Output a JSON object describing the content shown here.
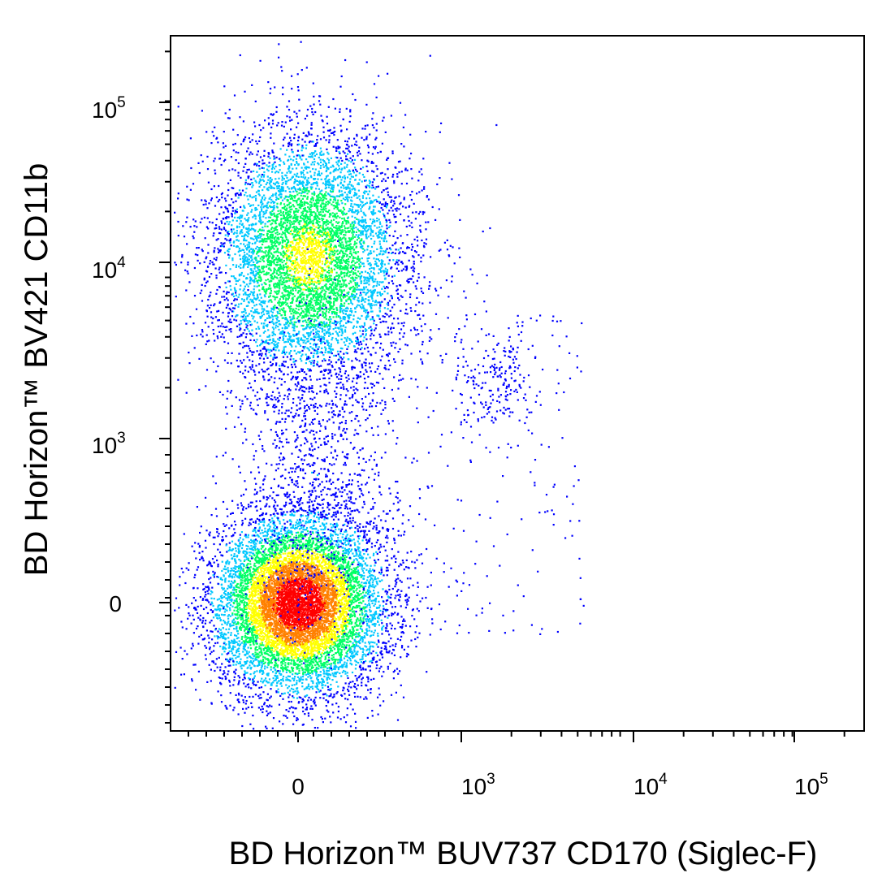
{
  "chart_data": {
    "type": "scatter",
    "title": "",
    "xlabel": "BD Horizon™ BUV737 CD170 (Siglec-F)",
    "ylabel": "BD Horizon™ BV421 CD11b",
    "x_scale": "biexponential",
    "y_scale": "biexponential",
    "x_ticks": [
      {
        "base": "0",
        "exp": ""
      },
      {
        "base": "10",
        "exp": "3"
      },
      {
        "base": "10",
        "exp": "4"
      },
      {
        "base": "10",
        "exp": "5"
      }
    ],
    "y_ticks": [
      {
        "base": "0",
        "exp": ""
      },
      {
        "base": "10",
        "exp": "3"
      },
      {
        "base": "10",
        "exp": "4"
      },
      {
        "base": "10",
        "exp": "5"
      }
    ],
    "grid": false,
    "legend": "none",
    "color_map": [
      "#0000ff",
      "#00c8ff",
      "#00ff64",
      "#ffff00",
      "#ff8000",
      "#ff0000"
    ],
    "populations": [
      {
        "center_x": 0,
        "center_y": 0,
        "fraction": 0.55,
        "peak_density": "red"
      },
      {
        "center_x": 60,
        "center_y": 12000,
        "fraction": 0.35,
        "peak_density": "green"
      },
      {
        "center_x": 1700,
        "center_y": 2200,
        "fraction": 0.03,
        "peak_density": "blue"
      },
      {
        "center_x": 100,
        "center_y": 800,
        "fraction": 0.07,
        "peak_density": "blue"
      }
    ]
  }
}
